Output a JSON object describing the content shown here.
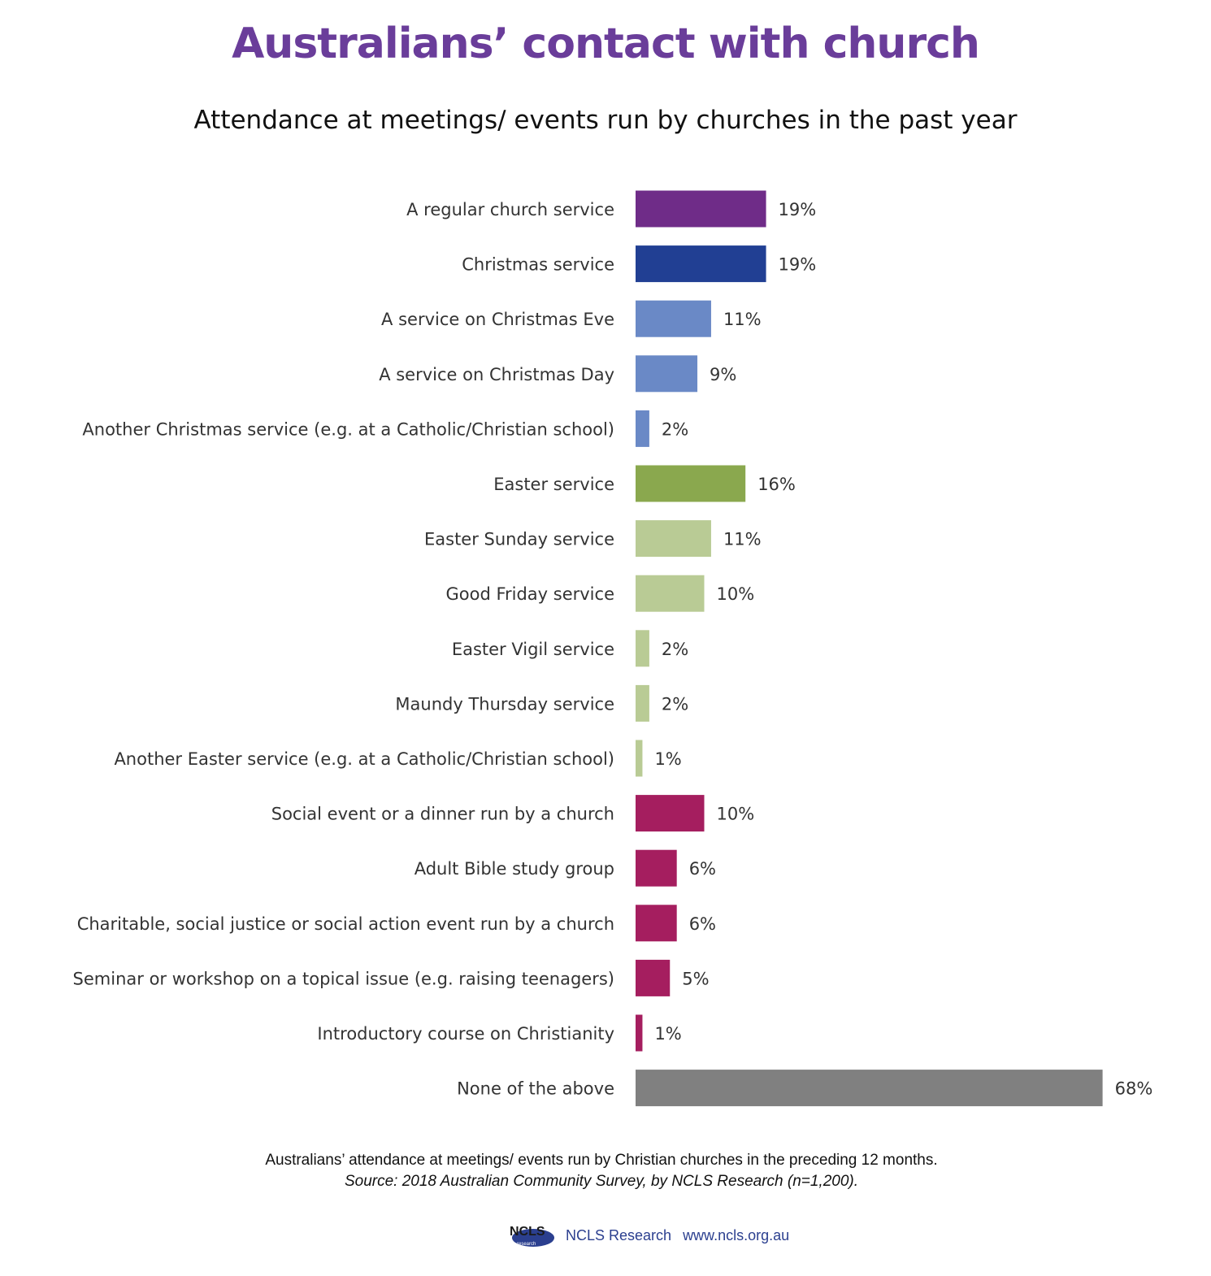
{
  "header": {
    "title": "Australians’ contact with church",
    "subtitle": "Attendance at meetings/ events run by churches in the past year"
  },
  "chart_data": {
    "type": "bar",
    "orientation": "horizontal",
    "title": "Australians’ contact with church",
    "subtitle": "Attendance at meetings/ events run by churches in the past year",
    "xlabel": "",
    "ylabel": "",
    "xlim": [
      0,
      68
    ],
    "grid": false,
    "value_suffix": "%",
    "categories": [
      "A regular church service",
      "Christmas service",
      "A service on Christmas Eve",
      "A service on Christmas Day",
      "Another Christmas service (e.g. at a Catholic/Christian school)",
      "Easter service",
      "Easter Sunday service",
      "Good Friday service",
      "Easter Vigil service",
      "Maundy Thursday service",
      "Another Easter service (e.g. at a Catholic/Christian school)",
      "Social event or a dinner run by a church",
      "Adult Bible study group",
      "Charitable, social justice or social action event run by a church",
      "Seminar or workshop on a topical issue (e.g. raising teenagers)",
      "Introductory course on Christianity",
      "None of the above"
    ],
    "values": [
      19,
      19,
      11,
      9,
      2,
      16,
      11,
      10,
      2,
      2,
      1,
      10,
      6,
      6,
      5,
      1,
      68
    ],
    "value_labels": [
      "19%",
      "19%",
      "11%",
      "9%",
      "2%",
      "16%",
      "11%",
      "10%",
      "2%",
      "2%",
      "1%",
      "10%",
      "6%",
      "6%",
      "5%",
      "1%",
      "68%"
    ],
    "colors": [
      "#6f2c88",
      "#213f93",
      "#6a89c6",
      "#6a89c6",
      "#6a89c6",
      "#8aa84e",
      "#b9cb95",
      "#b9cb95",
      "#b9cb95",
      "#b9cb95",
      "#b9cb95",
      "#a51e5f",
      "#a51e5f",
      "#a51e5f",
      "#a51e5f",
      "#a51e5f",
      "#808080"
    ]
  },
  "footer": {
    "caption": "Australians’ attendance at meetings/ events run by Christian churches in the preceding 12 months.",
    "source": "Source: 2018 Australian Community Survey, by NCLS Research (n=1,200).",
    "logo_text": "NCLS",
    "logo_subtext": "research",
    "org": "NCLS Research",
    "url": "www.ncls.org.au"
  }
}
